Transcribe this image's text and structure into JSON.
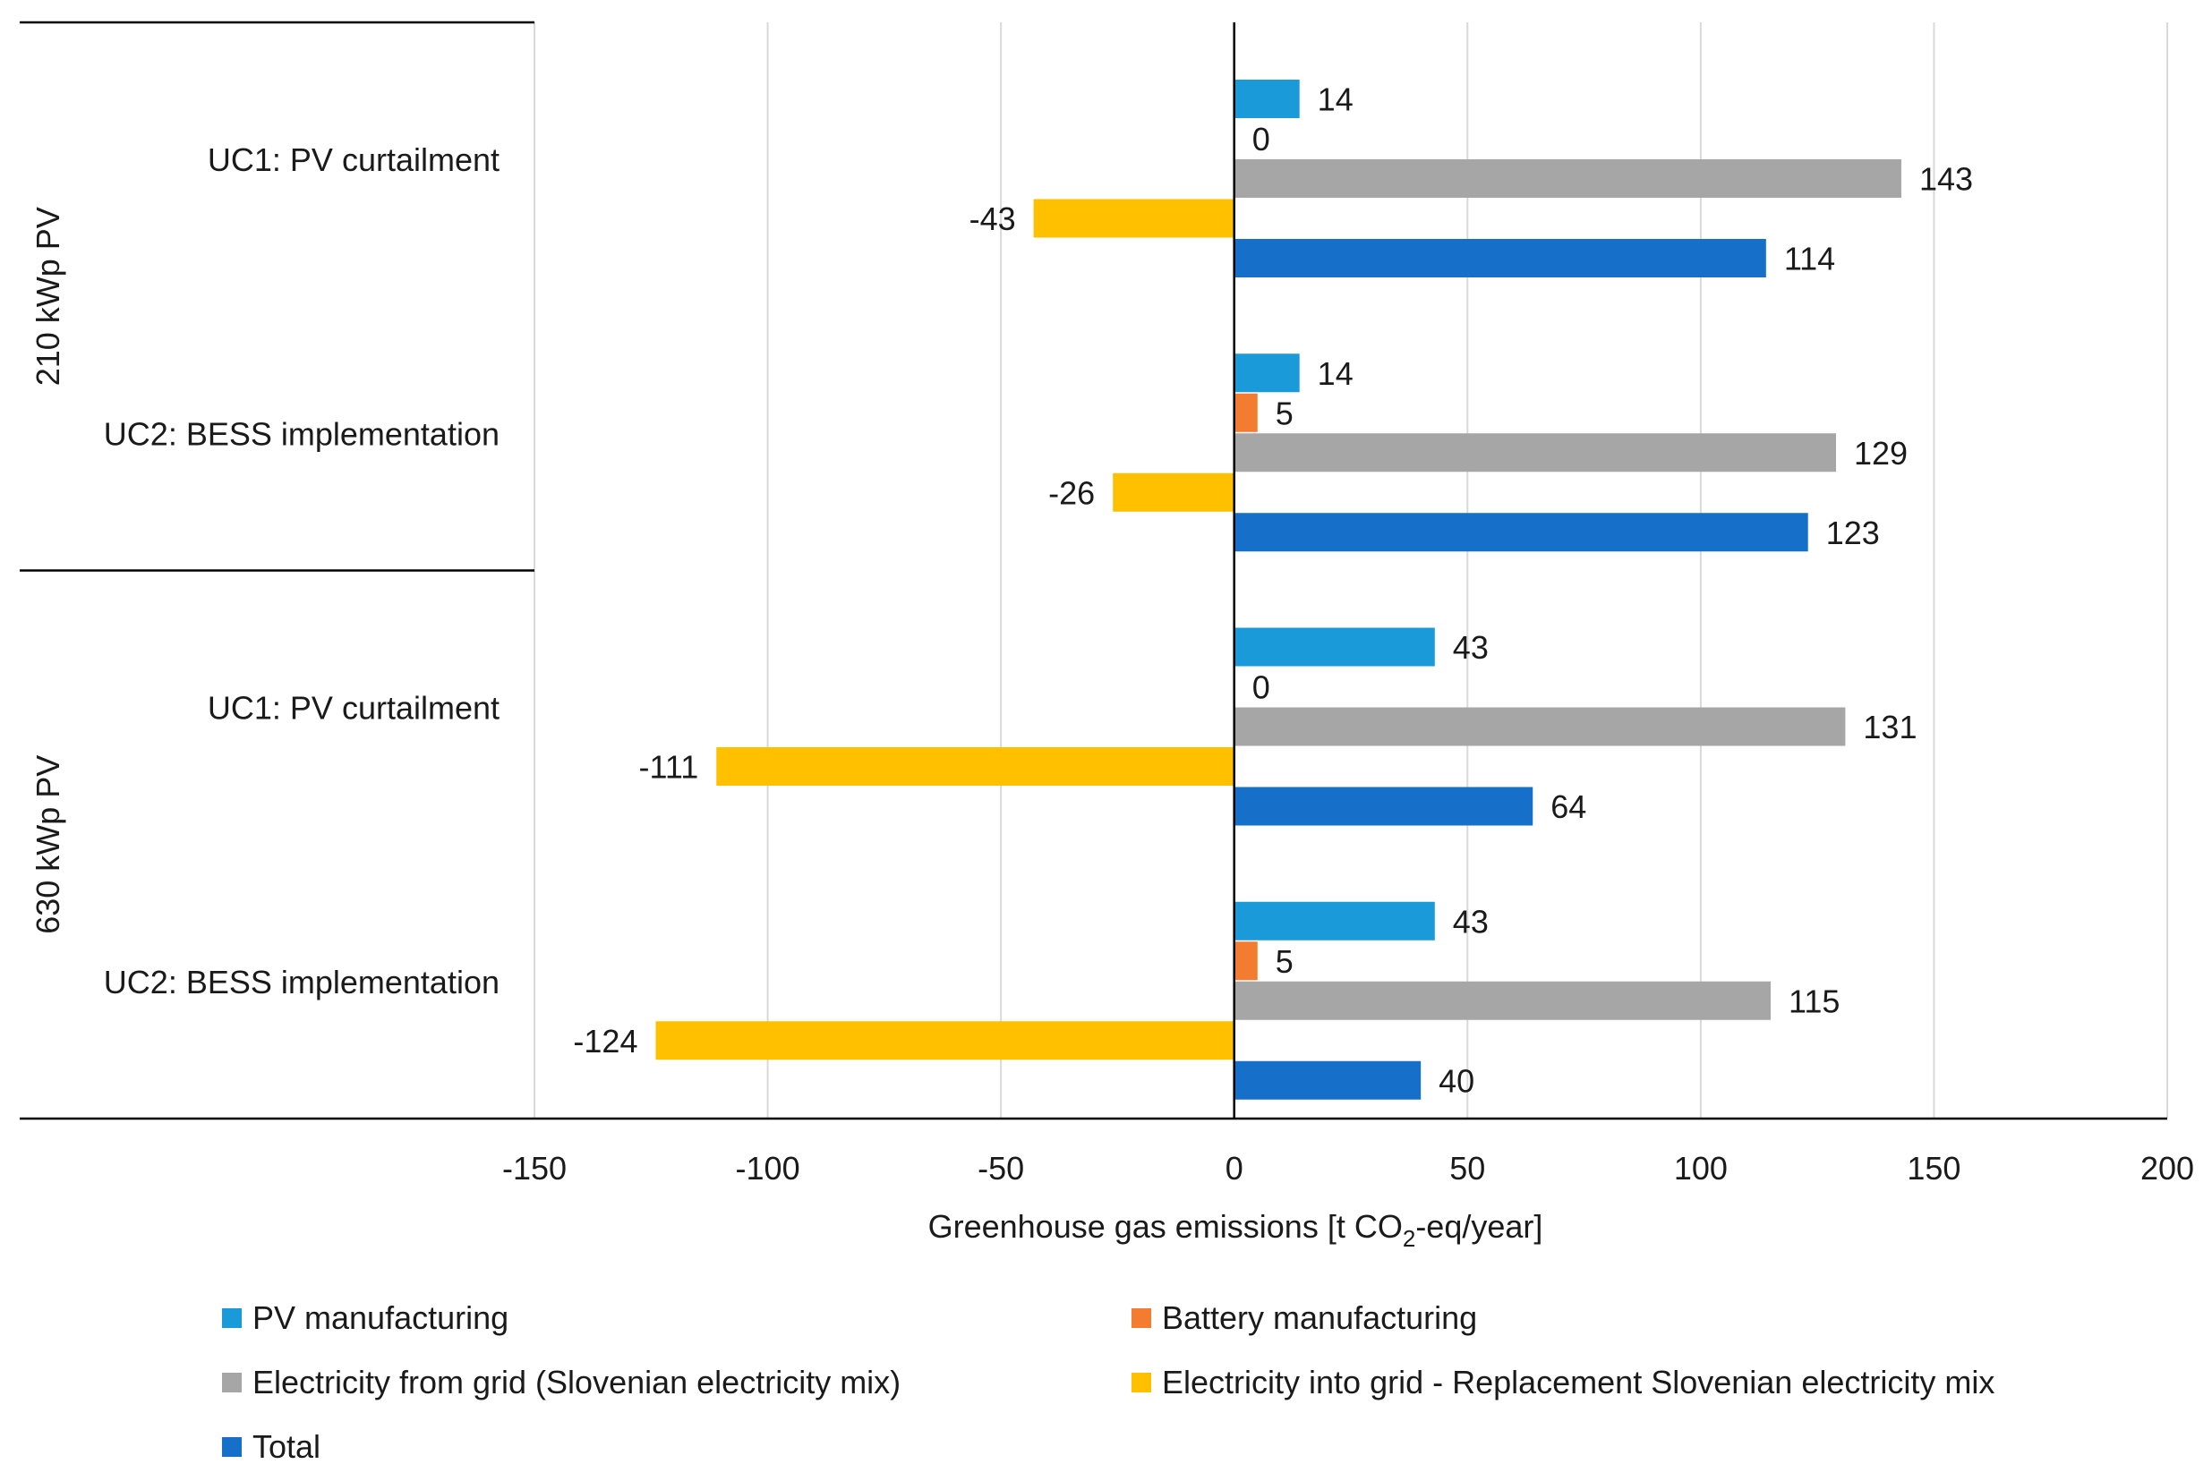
{
  "chart_data": {
    "type": "bar",
    "orientation": "horizontal",
    "title": "",
    "xlabel_prefix": "Greenhouse gas emissions [t CO",
    "xlabel_sub": "2",
    "xlabel_suffix": "-eq/year]",
    "xlim": [
      -150,
      200
    ],
    "xticks": [
      -150,
      -100,
      -50,
      0,
      50,
      100,
      150,
      200
    ],
    "grid": true,
    "legend_position": "bottom",
    "groups": [
      {
        "label": "210 kWp PV",
        "categories": [
          "UC1: PV curtailment",
          "UC2: BESS implementation"
        ]
      },
      {
        "label": "630 kWp PV",
        "categories": [
          "UC1: PV curtailment",
          "UC2: BESS implementation"
        ]
      }
    ],
    "categories": [
      "UC1: PV curtailment",
      "UC2: BESS implementation",
      "UC1: PV curtailment",
      "UC2: BESS implementation"
    ],
    "series": [
      {
        "name": "PV manufacturing",
        "color": "#1a9ad9",
        "values": [
          14,
          14,
          43,
          43
        ]
      },
      {
        "name": "Battery manufacturing",
        "color": "#f47c30",
        "values": [
          0,
          5,
          0,
          5
        ]
      },
      {
        "name": "Electricity from grid (Slovenian electricity mix)",
        "color": "#a6a6a6",
        "values": [
          143,
          129,
          131,
          115
        ]
      },
      {
        "name": "Electricity into grid - Replacement Slovenian electricity mix",
        "color": "#ffc000",
        "values": [
          -43,
          -26,
          -111,
          -124
        ]
      },
      {
        "name": "Total",
        "color": "#1670c9",
        "values": [
          114,
          123,
          64,
          40
        ]
      }
    ]
  }
}
